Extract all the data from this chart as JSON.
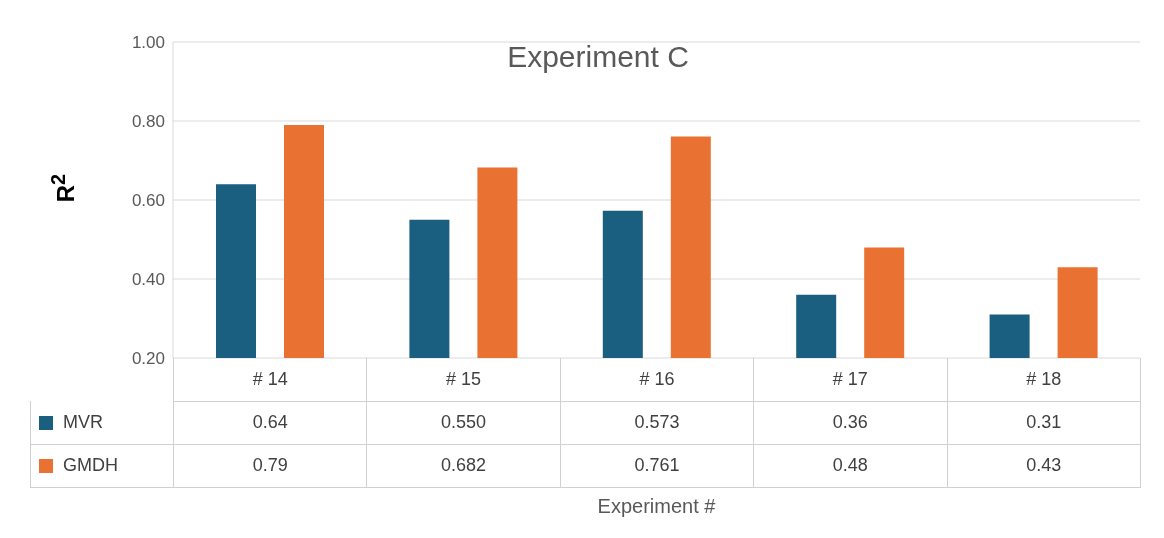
{
  "chart_data": {
    "type": "bar",
    "title": "Experiment C",
    "annotations": [
      "Experiment #"
    ],
    "ylabel": "R$^{2}$",
    "categories": [
      "# 14",
      "# 15",
      "# 16",
      "# 17",
      "# 18"
    ],
    "series": [
      {
        "name": "MVR",
        "color": "#1a5e80",
        "values": [
          0.64,
          0.55,
          0.573,
          0.36,
          0.31
        ],
        "value_labels": [
          "0.64",
          "0.550",
          "0.573",
          "0.36",
          "0.31"
        ]
      },
      {
        "name": "GMDH",
        "color": "#e97132",
        "values": [
          0.79,
          0.682,
          0.761,
          0.48,
          0.43
        ],
        "value_labels": [
          "0.79",
          "0.682",
          "0.761",
          "0.48",
          "0.43"
        ]
      }
    ],
    "ylim": [
      0.2,
      1.0
    ],
    "yticks": [
      {
        "value": 0.2,
        "label": "0.20"
      },
      {
        "value": 0.4,
        "label": "0.40"
      },
      {
        "value": 0.6,
        "label": "0.60"
      },
      {
        "value": 0.8,
        "label": "0.80"
      },
      {
        "value": 1.0,
        "label": "1.00"
      }
    ],
    "grid": "y",
    "legend": "bottom"
  }
}
